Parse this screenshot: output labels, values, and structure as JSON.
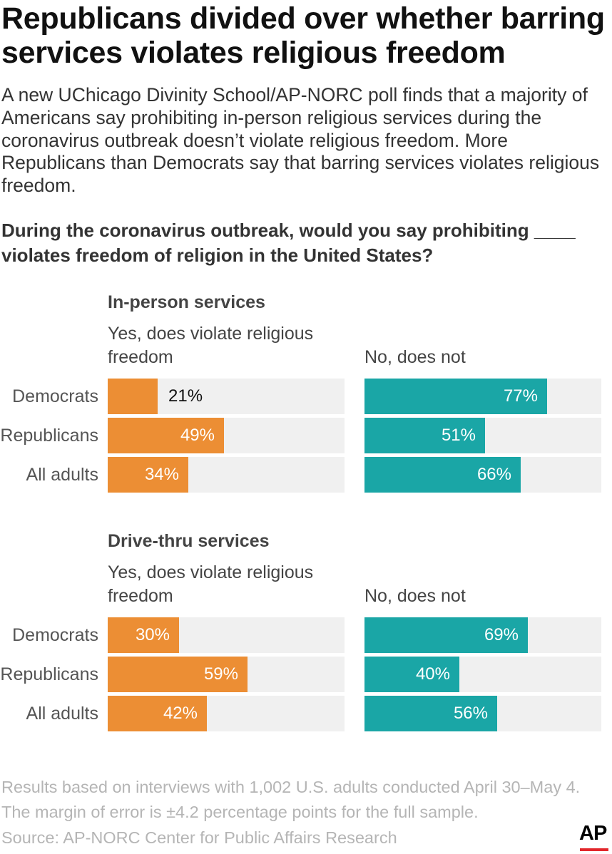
{
  "title": "Republicans divided over whether barring services violates religious freedom",
  "intro": "A new UChicago Divinity School/AP-NORC poll finds that a majority of Americans say prohibiting in-person religious services during the coronavirus outbreak doesn’t violate religious freedom. More Republicans than Democrats say that barring services violates religious freedom.",
  "question": "During the coronavirus outbreak, would you say prohibiting ____ violates freedom of religion in the United States?",
  "colors": {
    "yes": "#ec8e34",
    "no": "#1aa6a6",
    "track": "#f0f0f0"
  },
  "chart_data": [
    {
      "type": "bar",
      "section_title": "In-person services",
      "categories": [
        "Democrats",
        "Republicans",
        "All adults"
      ],
      "series": [
        {
          "name": "Yes, does violate religious freedom",
          "values": [
            21,
            49,
            34
          ],
          "labels": [
            "21%",
            "49%",
            "34%"
          ]
        },
        {
          "name": "No, does not",
          "values": [
            77,
            51,
            66
          ],
          "labels": [
            "77%",
            "51%",
            "66%"
          ]
        }
      ],
      "xlim": [
        0,
        100
      ]
    },
    {
      "type": "bar",
      "section_title": "Drive-thru services",
      "categories": [
        "Democrats",
        "Republicans",
        "All adults"
      ],
      "series": [
        {
          "name": "Yes, does violate religious freedom",
          "values": [
            30,
            59,
            42
          ],
          "labels": [
            "30%",
            "59%",
            "42%"
          ]
        },
        {
          "name": "No, does not",
          "values": [
            69,
            40,
            56
          ],
          "labels": [
            "69%",
            "40%",
            "56%"
          ]
        }
      ],
      "xlim": [
        0,
        100
      ]
    }
  ],
  "footnote": {
    "line1": "Results based on interviews with 1,002 U.S. adults conducted April 30–May 4.",
    "line2": "The margin of error is ±4.2 percentage points for the full sample.",
    "source": "Source: AP-NORC Center for Public Affairs Research"
  },
  "logo": {
    "text": "AP"
  }
}
